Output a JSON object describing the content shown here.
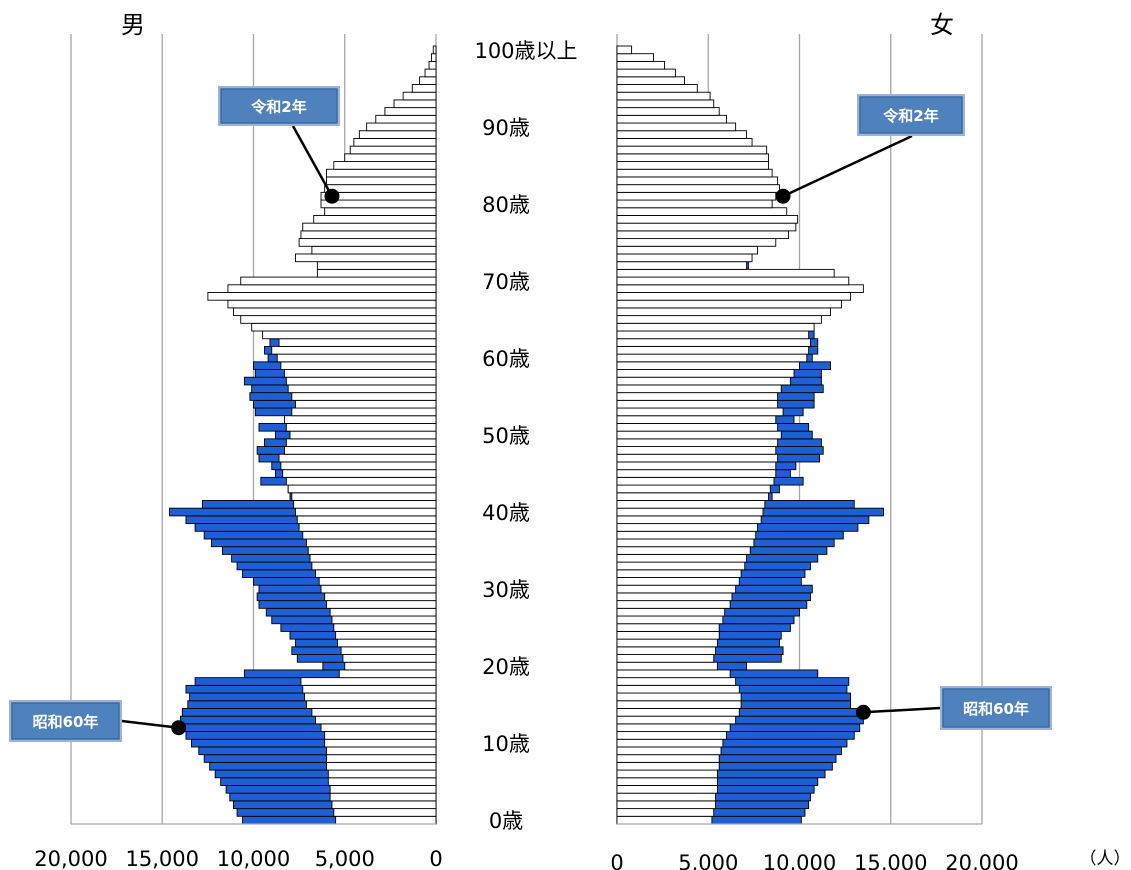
{
  "chart_data": {
    "type": "bar",
    "subtype": "population-pyramid",
    "title": "",
    "male_label": "男",
    "female_label": "女",
    "unit": "（人）",
    "xlim": [
      0,
      20000
    ],
    "male_ticks": [
      "20,000",
      "15,000",
      "10,000",
      "5,000",
      "0"
    ],
    "female_ticks": [
      "0",
      "5,000",
      "10,000",
      "15,000",
      "20,000"
    ],
    "age_labels": [
      "100歳以上",
      "90歳",
      "80歳",
      "70歳",
      "60歳",
      "50歳",
      "40歳",
      "30歳",
      "20歳",
      "10歳",
      "0歳"
    ],
    "grid": true,
    "colors": {
      "showa60": "#1f5fd6",
      "reiwa2": "#ffffff",
      "callout": "#4f81bd"
    },
    "ages": [
      0,
      1,
      2,
      3,
      4,
      5,
      6,
      7,
      8,
      9,
      10,
      11,
      12,
      13,
      14,
      15,
      16,
      17,
      18,
      19,
      20,
      21,
      22,
      23,
      24,
      25,
      26,
      27,
      28,
      29,
      30,
      31,
      32,
      33,
      34,
      35,
      36,
      37,
      38,
      39,
      40,
      41,
      42,
      43,
      44,
      45,
      46,
      47,
      48,
      49,
      50,
      51,
      52,
      53,
      54,
      55,
      56,
      57,
      58,
      59,
      60,
      61,
      62,
      63,
      64,
      65,
      66,
      67,
      68,
      69,
      70,
      71,
      72,
      73,
      74,
      75,
      76,
      77,
      78,
      79,
      80,
      81,
      82,
      83,
      84,
      85,
      86,
      87,
      88,
      89,
      90,
      91,
      92,
      93,
      94,
      95,
      96,
      97,
      98,
      99,
      100
    ],
    "series": [
      {
        "name": "昭和60年",
        "male": [
          10600,
          10900,
          11100,
          11300,
          11500,
          11800,
          12100,
          12400,
          12700,
          13000,
          13400,
          13700,
          13900,
          14000,
          13900,
          13600,
          13500,
          13700,
          13200,
          10500,
          6200,
          7600,
          7900,
          7700,
          8000,
          8500,
          9000,
          9300,
          9700,
          9800,
          9700,
          10000,
          10600,
          10900,
          11200,
          11700,
          12300,
          12700,
          13200,
          13700,
          14600,
          12800,
          8000,
          8100,
          9600,
          8800,
          9000,
          9700,
          9800,
          9400,
          8800,
          9700,
          8000,
          9900,
          10000,
          10200,
          10100,
          10500,
          9900,
          10000,
          9200,
          9400,
          9100,
          9000,
          8500,
          8900,
          7600,
          7400,
          7000,
          6500,
          5200,
          5100,
          5200,
          5000,
          4900,
          4700,
          4500,
          4300,
          4200,
          4000,
          3800,
          3500,
          3200,
          2800,
          2500,
          2200,
          1900,
          1600,
          1300,
          1000,
          750,
          550,
          380,
          260,
          170,
          110,
          70,
          45,
          30,
          20,
          30
        ],
        "female": [
          10100,
          10300,
          10500,
          10600,
          10800,
          11000,
          11400,
          11800,
          12000,
          12300,
          12600,
          13000,
          13300,
          13500,
          13400,
          12800,
          12800,
          12600,
          12700,
          11000,
          7100,
          9000,
          9100,
          8900,
          9000,
          9500,
          9700,
          10000,
          10400,
          10600,
          10700,
          10100,
          10300,
          10600,
          11000,
          11500,
          11900,
          12400,
          13200,
          13800,
          14600,
          13000,
          8500,
          8900,
          10200,
          9500,
          9800,
          11100,
          11300,
          11200,
          10700,
          10500,
          9700,
          10200,
          10800,
          10800,
          11300,
          11200,
          11200,
          11700,
          10700,
          11000,
          11000,
          10800,
          10700,
          10600,
          10400,
          10000,
          9200,
          8700,
          7200,
          7100,
          7200,
          7300,
          7400,
          7300,
          7000,
          6600,
          6500,
          6300,
          6000,
          5700,
          5200,
          4600,
          4200,
          3800,
          3400,
          2900,
          2500,
          2000,
          1600,
          1300,
          1000,
          720,
          500,
          360,
          250,
          170,
          110,
          70,
          100
        ]
      },
      {
        "name": "令和2年",
        "male": [
          5500,
          5600,
          5700,
          5800,
          5800,
          5900,
          5900,
          6000,
          6000,
          6000,
          6100,
          6100,
          6300,
          6600,
          6800,
          7100,
          7200,
          7300,
          7400,
          5300,
          5000,
          5100,
          5200,
          5400,
          5500,
          5600,
          5700,
          5800,
          6000,
          6100,
          6300,
          6400,
          6600,
          6800,
          6900,
          7000,
          7100,
          7300,
          7500,
          7600,
          7700,
          7800,
          7900,
          8100,
          8200,
          8400,
          8500,
          8600,
          8300,
          8200,
          8000,
          8200,
          8300,
          7900,
          7700,
          7900,
          8100,
          8200,
          8300,
          8500,
          8700,
          9000,
          8600,
          9500,
          10100,
          10700,
          11100,
          11400,
          12500,
          11400,
          10700,
          6500,
          6500,
          7700,
          6800,
          7500,
          7400,
          7300,
          6700,
          6100,
          6300,
          6300,
          6100,
          6000,
          6000,
          5600,
          5000,
          4700,
          4500,
          4200,
          3800,
          3300,
          2800,
          2300,
          1800,
          1300,
          900,
          600,
          380,
          250,
          150
        ],
        "female": [
          5200,
          5300,
          5400,
          5400,
          5500,
          5500,
          5500,
          5600,
          5600,
          5700,
          5800,
          6000,
          6200,
          6500,
          6700,
          6800,
          6800,
          6700,
          6500,
          6200,
          5500,
          5300,
          5400,
          5500,
          5600,
          5600,
          5800,
          5900,
          6200,
          6300,
          6500,
          6700,
          6800,
          7000,
          7100,
          7300,
          7500,
          7600,
          7700,
          7900,
          8000,
          8100,
          8300,
          8400,
          8600,
          8700,
          8700,
          8800,
          8700,
          8800,
          9000,
          8800,
          8700,
          9100,
          8800,
          8800,
          9000,
          9500,
          9700,
          10000,
          10400,
          10500,
          10600,
          10500,
          10800,
          11200,
          11700,
          12300,
          12800,
          13500,
          12700,
          11900,
          7100,
          7400,
          7700,
          8700,
          9400,
          9800,
          9900,
          9300,
          8500,
          8700,
          8900,
          8800,
          8500,
          8300,
          8300,
          8200,
          7400,
          7100,
          6500,
          6000,
          5600,
          5300,
          5100,
          4400,
          3700,
          3200,
          2600,
          2000,
          800
        ]
      }
    ],
    "annotations": [
      {
        "label": "令和2年",
        "side": "male",
        "age": 81,
        "value": 5700
      },
      {
        "label": "令和2年",
        "side": "female",
        "age": 81,
        "value": 9100
      },
      {
        "label": "昭和60年",
        "side": "male",
        "age": 12,
        "value": 14100
      },
      {
        "label": "昭和60年",
        "side": "female",
        "age": 14,
        "value": 13500
      }
    ]
  }
}
